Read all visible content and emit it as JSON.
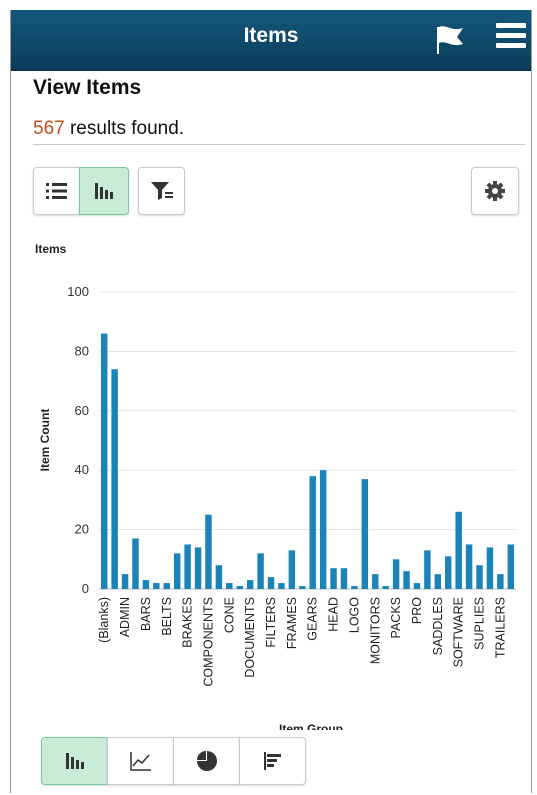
{
  "header": {
    "title": "Items",
    "flag_icon": "flag-icon",
    "menu_icon": "hamburger-menu-icon"
  },
  "page": {
    "title": "View Items",
    "result_count": "567",
    "result_suffix": " results found."
  },
  "toolbar": {
    "view_buttons": [
      {
        "name": "list-view-button",
        "icon": "list-icon",
        "active": false
      },
      {
        "name": "chart-view-button",
        "icon": "bar-chart-icon",
        "active": true
      }
    ],
    "filter_icon": "filter-icon",
    "settings_icon": "gear-icon"
  },
  "chart_data": {
    "type": "bar",
    "title": "Items",
    "xlabel": "Item Group",
    "ylabel": "Item Count",
    "ylim": [
      0,
      100
    ],
    "yticks": [
      0,
      20,
      40,
      60,
      80,
      100
    ],
    "grid": true,
    "bar_color": "#1a84b9",
    "categories": [
      "(Blanks)",
      "",
      "ADMIN",
      "",
      "BARS",
      "",
      "BELTS",
      "",
      "BRAKES",
      "",
      "COMPONENTS",
      "",
      "CONE",
      "",
      "DOCUMENTS",
      "",
      "FILTERS",
      "",
      "FRAMES",
      "",
      "GEARS",
      "",
      "HEAD",
      "",
      "LOGO",
      "",
      "MONITORS",
      "",
      "PACKS",
      "",
      "PRO",
      "",
      "SADDLES",
      "",
      "SOFTWARE",
      "",
      "SUPLIES",
      "",
      "TRAILERS",
      ""
    ],
    "values": [
      86,
      74,
      5,
      17,
      3,
      2,
      2,
      12,
      15,
      14,
      25,
      8,
      2,
      1,
      3,
      12,
      4,
      2,
      13,
      1,
      38,
      40,
      7,
      7,
      1,
      37,
      5,
      1,
      10,
      6,
      2,
      13,
      5,
      11,
      26,
      15,
      8,
      14,
      5,
      15
    ]
  },
  "chart_types": [
    {
      "name": "bar-chart-type-button",
      "icon": "bar-chart-icon",
      "active": true
    },
    {
      "name": "line-chart-type-button",
      "icon": "line-chart-icon",
      "active": false
    },
    {
      "name": "pie-chart-type-button",
      "icon": "pie-chart-icon",
      "active": false
    },
    {
      "name": "horizontal-bar-chart-type-button",
      "icon": "horizontal-bar-icon",
      "active": false
    }
  ]
}
